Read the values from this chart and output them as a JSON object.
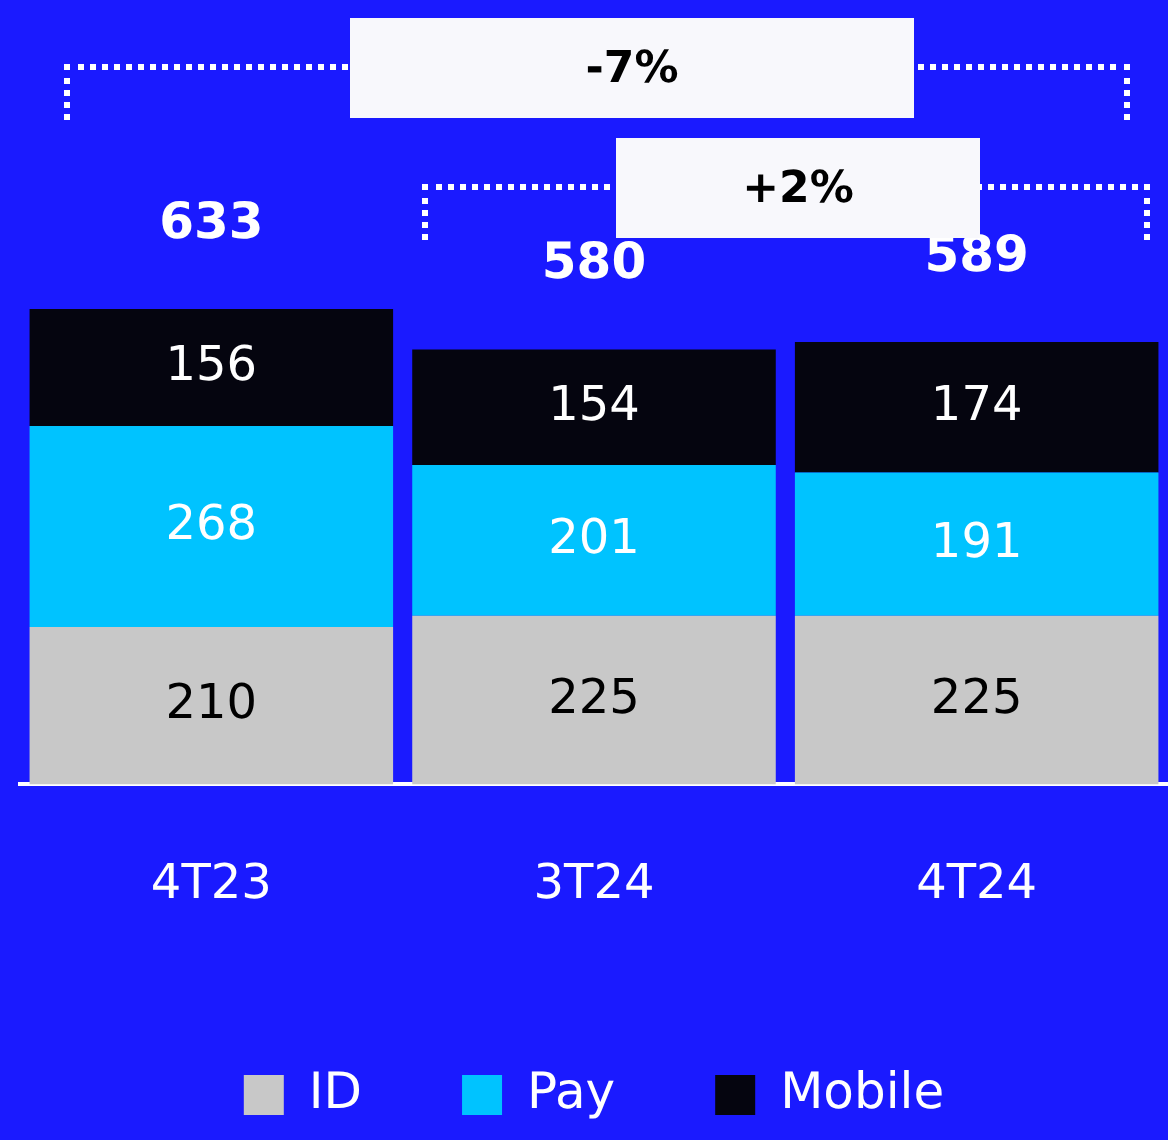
{
  "chart_data": {
    "type": "bar",
    "stacked": true,
    "categories": [
      "4T23",
      "3T24",
      "4T24"
    ],
    "series": [
      {
        "name": "ID",
        "color": "#c8c8c8",
        "values": [
          210,
          225,
          225
        ]
      },
      {
        "name": "Pay",
        "color": "#00c3ff",
        "values": [
          268,
          201,
          191
        ]
      },
      {
        "name": "Mobile",
        "color": "#05050f",
        "values": [
          156,
          154,
          174
        ]
      }
    ],
    "data_labels": true,
    "totals": [
      "633",
      "580",
      "589"
    ],
    "annotations": [
      "-7%",
      "+2%"
    ],
    "legend": "bottom"
  }
}
